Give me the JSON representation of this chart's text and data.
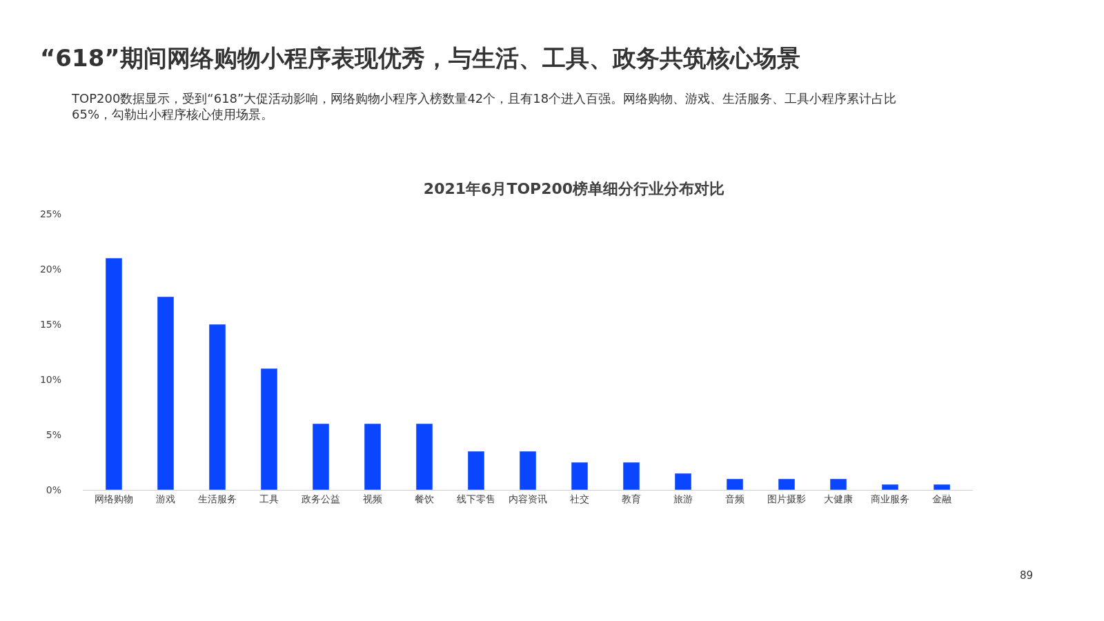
{
  "chart_data": {
    "type": "bar",
    "title": "2021年6月TOP200榜单细分行业分布对比",
    "subtitle": "“618”期间网络购物小程序表现优秀，与生活、工具、政务共筑核心场景",
    "annotations": [
      "TOP200数据显示，受到“618”大促活动影响，网络购物小程序入榜数量42个，且有18个进入百强。网络购物、游戏、生活服务、工具小程序累计占比65%，勾勒出小程序核心使用场景。",
      "89"
    ],
    "categories": [
      "网络购物",
      "游戏",
      "生活服务",
      "工具",
      "政务公益",
      "视频",
      "餐饮",
      "线下零售",
      "内容资讯",
      "社交",
      "教育",
      "旅游",
      "音频",
      "图片摄影",
      "大健康",
      "商业服务",
      "金融"
    ],
    "values": [
      21,
      17.5,
      15,
      11,
      6,
      6,
      6,
      3.5,
      3.5,
      2.5,
      2.5,
      1.5,
      1,
      1,
      1,
      0.5,
      0.5
    ],
    "color": "#0a46ff",
    "ylim": [
      0,
      25
    ],
    "yticks": [
      {
        "value": 0,
        "label": "0%"
      },
      {
        "value": 5,
        "label": "5%"
      },
      {
        "value": 10,
        "label": "10%"
      },
      {
        "value": 15,
        "label": "15%"
      },
      {
        "value": 20,
        "label": "20%"
      },
      {
        "value": 25,
        "label": "25%"
      }
    ],
    "legend": false
  }
}
